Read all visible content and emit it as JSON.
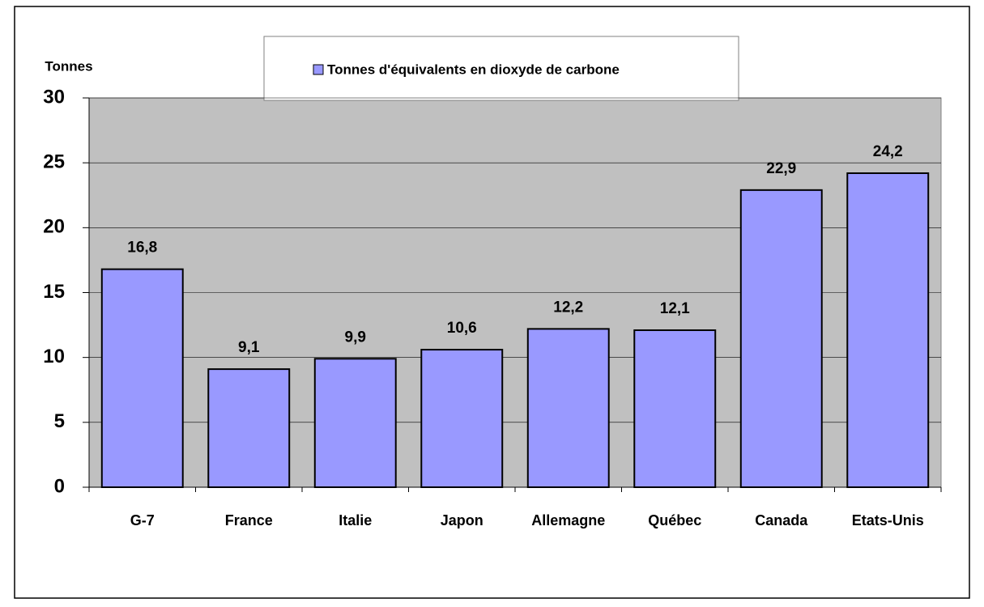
{
  "chart_data": {
    "type": "bar",
    "y_axis_label": "Tonnes",
    "legend": "Tonnes d'équivalents en dioxyde de carbone",
    "categories": [
      "G-7",
      "France",
      "Italie",
      "Japon",
      "Allemagne",
      "Québec",
      "Canada",
      "Etats-Unis"
    ],
    "values": [
      16.8,
      9.1,
      9.9,
      10.6,
      12.2,
      12.1,
      22.9,
      24.2
    ],
    "value_labels": [
      "16,8",
      "9,1",
      "9,9",
      "10,6",
      "12,2",
      "12,1",
      "22,9",
      "24,2"
    ],
    "color": "#9999ff",
    "ylim": [
      0,
      30
    ],
    "yticks": [
      0,
      5,
      10,
      15,
      20,
      25,
      30
    ],
    "grid": true
  }
}
